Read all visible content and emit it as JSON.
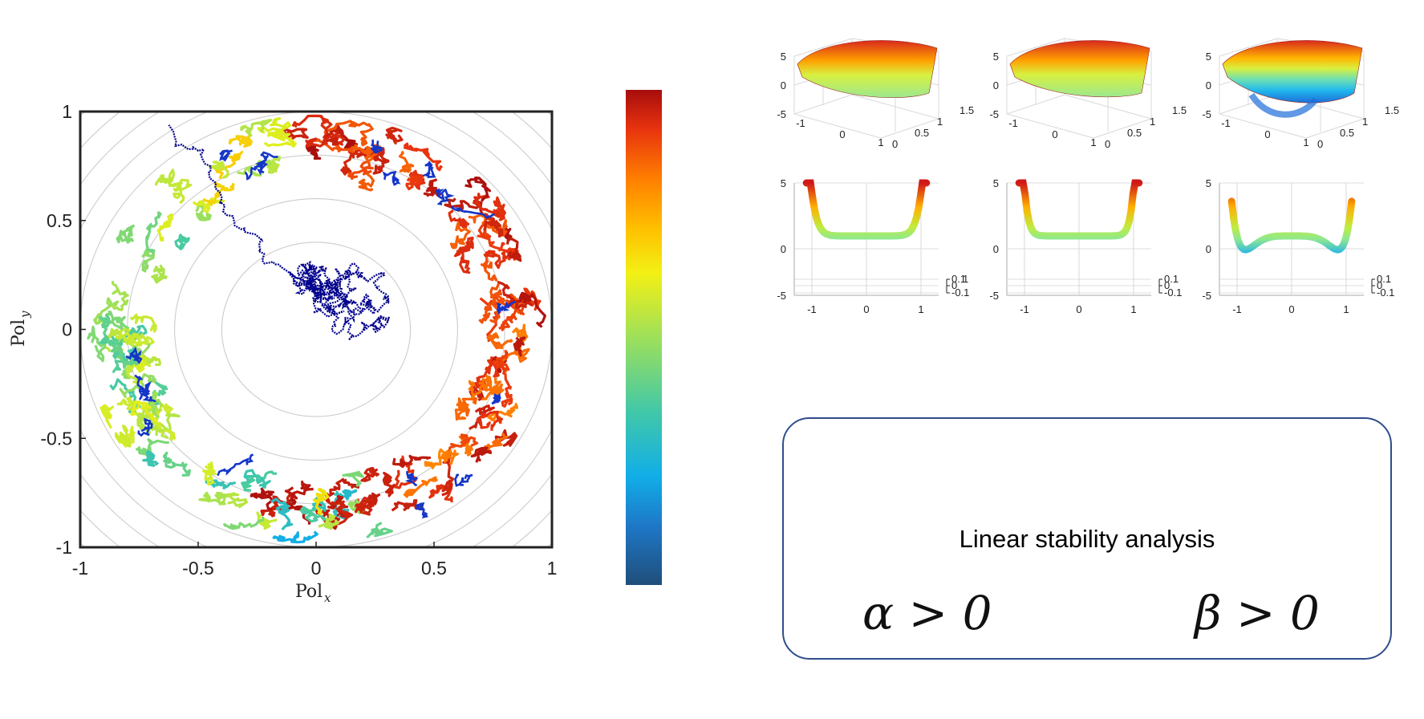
{
  "chart_data": [
    {
      "type": "scatter",
      "title": "",
      "xlabel": "Pol",
      "xlabel_sub": "x",
      "ylabel": "Pol",
      "ylabel_sub": "y",
      "xlim": [
        -1,
        1
      ],
      "ylim": [
        -1,
        1
      ],
      "xticks": [
        "-1",
        "-0.5",
        "0",
        "0.5",
        "1"
      ],
      "yticks": [
        "1",
        "0.5",
        "0",
        "-0.5",
        "-1"
      ],
      "contour_radii": [
        0.4,
        0.6,
        0.8,
        1.0,
        1.1,
        1.2,
        1.3,
        1.4
      ],
      "description_series": [
        {
          "name": "inner-trajectory",
          "color": "#00008b",
          "r_range": [
            0.0,
            0.42
          ]
        },
        {
          "name": "ring-trajectory",
          "colormap": "jet",
          "r_range": [
            0.7,
            0.97
          ]
        }
      ],
      "colorbar": {
        "colormap": "jet",
        "ticks": []
      }
    },
    {
      "type": "surface-grid",
      "rows": [
        {
          "kind": "3d",
          "panels": [
            {
              "zticks": [
                "5",
                "0",
                "-5"
              ],
              "xticks": [
                "-1",
                "0",
                "1"
              ],
              "yticks": [
                "0",
                "0.5",
                "1",
                "1.5"
              ],
              "shape": "single-well"
            },
            {
              "zticks": [
                "5",
                "0",
                "-5"
              ],
              "xticks": [
                "-1",
                "0",
                "1"
              ],
              "yticks": [
                "0",
                "0.5",
                "1",
                "1.5"
              ],
              "shape": "flat-well"
            },
            {
              "zticks": [
                "5",
                "0",
                "-5"
              ],
              "xticks": [
                "-1",
                "0",
                "1"
              ],
              "yticks": [
                "0",
                "0.5",
                "1",
                "1.5"
              ],
              "shape": "double-well"
            }
          ]
        },
        {
          "kind": "2d",
          "panels": [
            {
              "yticks": [
                "5",
                "0",
                "-5"
              ],
              "xticks": [
                "-1",
                "0",
                "1"
              ],
              "side_ticks": [
                "0.1",
                "0",
                "-0.1"
              ],
              "side_overlap": "1"
            },
            {
              "yticks": [
                "5",
                "0",
                "-5"
              ],
              "xticks": [
                "-1",
                "0",
                "1"
              ],
              "side_ticks": [
                "0.1",
                "0",
                "-0.1"
              ],
              "side_overlap": ""
            },
            {
              "yticks": [
                "5",
                "0",
                "-5"
              ],
              "xticks": [
                "-1",
                "0",
                "1"
              ],
              "side_ticks": [
                "0.1",
                "0",
                "-0.1"
              ],
              "side_overlap": ""
            }
          ]
        }
      ]
    }
  ],
  "stability": {
    "title": "Linear stability analysis",
    "alpha_condition": "α > 0",
    "beta_condition": "β > 0"
  },
  "colors": {
    "frame": "#222222",
    "grid": "#cccccc",
    "box_border": "#2f4e8c",
    "inner_trajectory": "#00008b"
  }
}
